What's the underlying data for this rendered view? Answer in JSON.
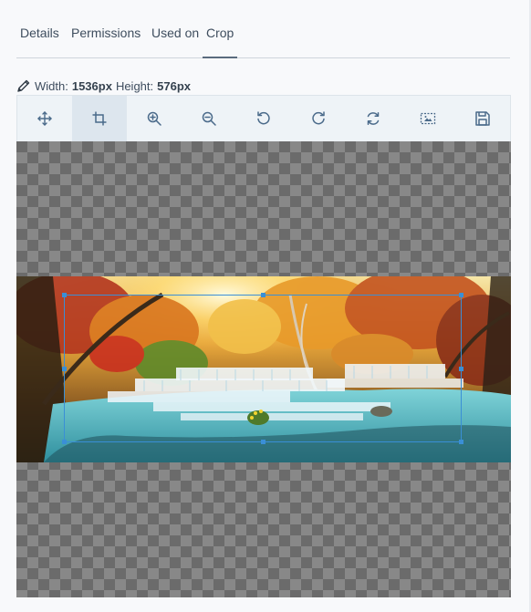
{
  "tabs": [
    {
      "label": "Details"
    },
    {
      "label": "Permissions"
    },
    {
      "label": "Used on"
    },
    {
      "label": "Crop"
    }
  ],
  "active_tab": "Crop",
  "dimensions": {
    "width_label": "Width:",
    "width_value": "1536px",
    "height_label": "Height:",
    "height_value": "576px"
  },
  "toolbar": {
    "tools": [
      {
        "name": "move",
        "icon": "move-icon"
      },
      {
        "name": "crop",
        "icon": "crop-icon",
        "active": true
      },
      {
        "name": "zoom-in",
        "icon": "zoom-in-icon"
      },
      {
        "name": "zoom-out",
        "icon": "zoom-out-icon"
      },
      {
        "name": "rotate-left",
        "icon": "rotate-left-icon"
      },
      {
        "name": "rotate-right",
        "icon": "rotate-right-icon"
      },
      {
        "name": "reset",
        "icon": "reset-icon"
      },
      {
        "name": "crop-preview",
        "icon": "image-frame-icon"
      },
      {
        "name": "save",
        "icon": "save-icon"
      }
    ]
  },
  "canvas": {
    "image": "autumn-waterfall-forest-photo"
  },
  "colors": {
    "icon": "#4a6a8a",
    "accent": "#3a8fd6",
    "active_tool_bg": "#dde6ee"
  }
}
